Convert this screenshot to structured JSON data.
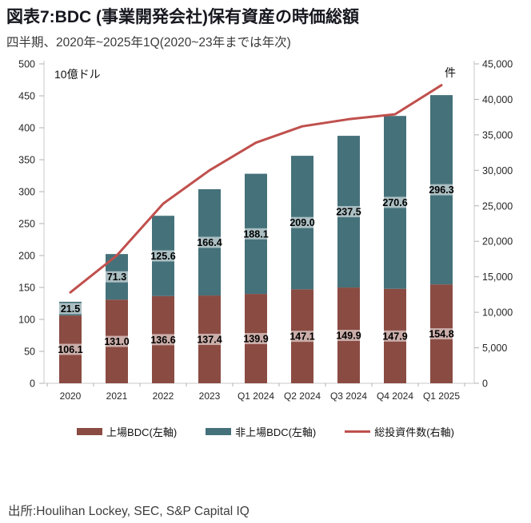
{
  "header": {
    "title": "図表7:BDC (事業開発会社)保有資産の時価総額",
    "subtitle": "四半期、2020年~2025年1Q(2020~23年までは年次)"
  },
  "chart_data": {
    "type": "bar",
    "subtype": "stacked-bar-with-line",
    "categories": [
      "2020",
      "2021",
      "2022",
      "2023",
      "Q1 2024",
      "Q2 2024",
      "Q3 2024",
      "Q4 2024",
      "Q1 2025"
    ],
    "series": [
      {
        "name": "上場BDC(左軸)",
        "type": "bar-stack",
        "axis": "left",
        "color": "#8a4b42",
        "values": [
          106.1,
          131.0,
          136.6,
          137.4,
          139.9,
          147.1,
          149.9,
          147.9,
          154.8
        ]
      },
      {
        "name": "非上場BDC(左軸)",
        "type": "bar-stack",
        "axis": "left",
        "color": "#45717a",
        "values": [
          21.5,
          71.3,
          125.6,
          166.4,
          188.1,
          209.0,
          237.5,
          270.6,
          296.3
        ]
      },
      {
        "name": "総投資件数(右軸)",
        "type": "line",
        "axis": "right",
        "color": "#c0504d",
        "values": [
          12800,
          18000,
          25300,
          30000,
          33900,
          36200,
          37200,
          37900,
          42000
        ],
        "values_estimated_from_pixels": true
      }
    ],
    "left_axis": {
      "unit_label": "10億ドル",
      "min": 0,
      "max": 500,
      "step": 50
    },
    "right_axis": {
      "unit_label": "件",
      "min": 0,
      "max": 45000,
      "step": 5000
    },
    "grid": false,
    "legend_position": "bottom",
    "data_labels": "on, one decimal, shown at center of each bar segment"
  },
  "footer": {
    "source": "出所:Houlihan Lockey, SEC, S&P Capital IQ"
  }
}
